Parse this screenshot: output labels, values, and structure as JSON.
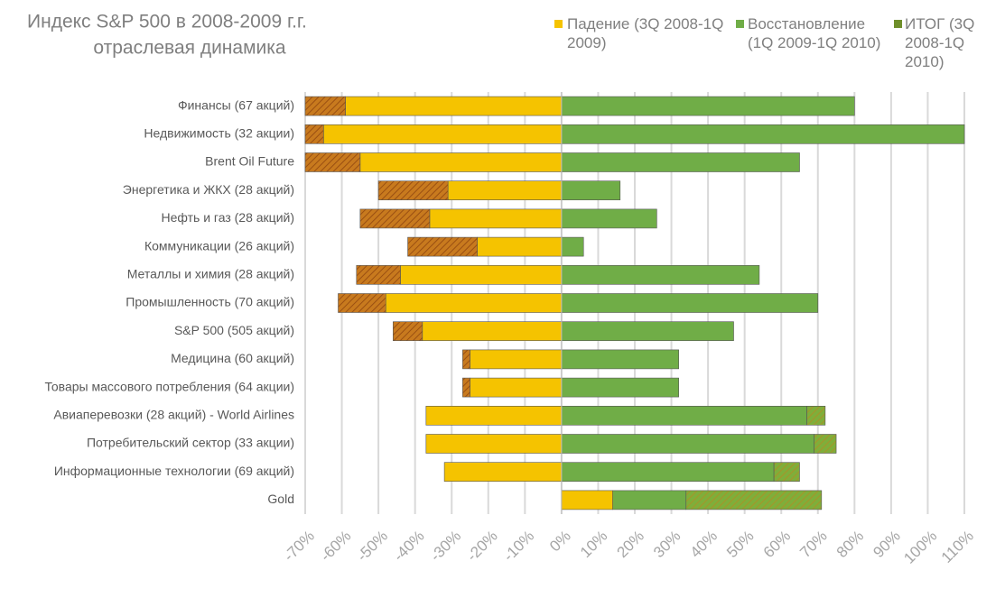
{
  "chart_data": {
    "type": "bar",
    "orientation": "horizontal",
    "stacked": true,
    "title": "Индекс S&P 500 в 2008-2009 г.г.",
    "subtitle": "отраслевая динамика",
    "categories": [
      "Финансы (67 акций)",
      "Недвижимость (32 акции)",
      "Brent Oil Future",
      "Энергетика и ЖКХ (28 акций)",
      "Нефть и газ (28 акций)",
      "Коммуникации (26 акций)",
      "Металлы и химия (28 акций)",
      "Промышленность (70 акций)",
      "S&P 500 (505 акций)",
      "Медицина (60 акций)",
      "Товары массового потребления (64 акции)",
      "Авиаперевозки (28 акций) - World Airlines",
      "Потребительский сектор (33 акции)",
      "Информационные технологии (69 акций)",
      "Gold"
    ],
    "series": [
      {
        "name": "Падение (3Q 2008-1Q 2009)",
        "color": "#f5c300",
        "values": [
          -59,
          -65,
          -55,
          -31,
          -36,
          -23,
          -44,
          -48,
          -38,
          -25,
          -25,
          -37,
          -37,
          -32,
          14
        ]
      },
      {
        "name": "Восстановление (1Q 2009-1Q 2010)",
        "color": "#70ad47",
        "values": [
          80,
          110,
          65,
          16,
          26,
          6,
          54,
          70,
          47,
          32,
          32,
          67,
          69,
          58,
          20
        ]
      },
      {
        "name": "ИТОГ (3Q 2008-1Q 2010)",
        "color": "#6f8f2a",
        "values": [
          -11,
          -5,
          -15,
          -19,
          -19,
          -19,
          -12,
          -13,
          -8,
          -2,
          -2,
          5,
          6,
          7,
          37
        ]
      }
    ],
    "xlim": [
      -70,
      110
    ],
    "xticks": [
      {
        "value": -70,
        "label": "-70%"
      },
      {
        "value": -60,
        "label": "-60%"
      },
      {
        "value": -50,
        "label": "-50%"
      },
      {
        "value": -40,
        "label": "-40%"
      },
      {
        "value": -30,
        "label": "-30%"
      },
      {
        "value": -20,
        "label": "-20%"
      },
      {
        "value": -10,
        "label": "-10%"
      },
      {
        "value": 0,
        "label": "0%"
      },
      {
        "value": 10,
        "label": "10%"
      },
      {
        "value": 20,
        "label": "20%"
      },
      {
        "value": 30,
        "label": "30%"
      },
      {
        "value": 40,
        "label": "40%"
      },
      {
        "value": 50,
        "label": "50%"
      },
      {
        "value": 60,
        "label": "60%"
      },
      {
        "value": 70,
        "label": "70%"
      },
      {
        "value": 80,
        "label": "80%"
      },
      {
        "value": 90,
        "label": "90%"
      },
      {
        "value": 100,
        "label": "100%"
      },
      {
        "value": 110,
        "label": "110%"
      }
    ],
    "grid": true
  }
}
